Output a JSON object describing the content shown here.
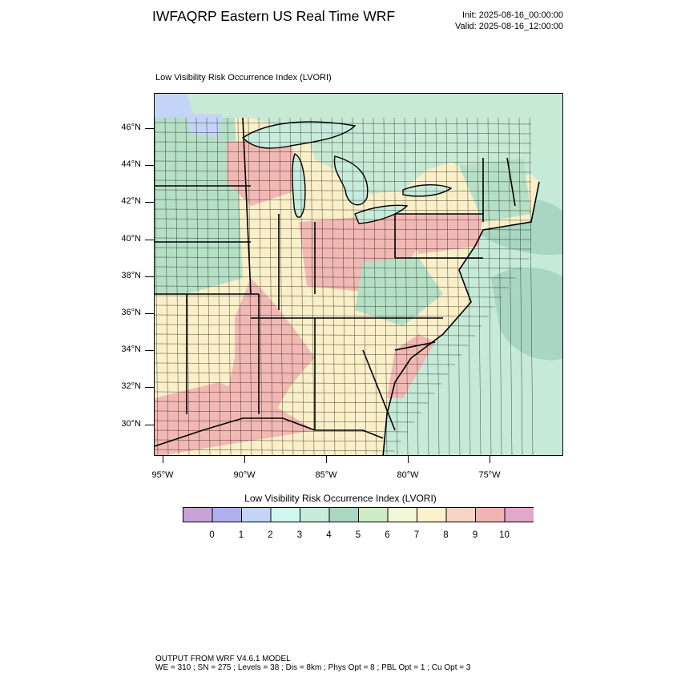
{
  "header": {
    "title": "IWFAQRP Eastern US Real Time WRF",
    "init": "Init: 2025-08-16_00:00:00",
    "valid": "Valid: 2025-08-16_12:00:00"
  },
  "field_title": "Low Visibility Risk Occurrence Index   (LVORI)",
  "latitude_labels": [
    "46°N",
    "44°N",
    "42°N",
    "40°N",
    "38°N",
    "36°N",
    "34°N",
    "32°N",
    "30°N"
  ],
  "longitude_labels": [
    "95°W",
    "90°W",
    "85°W",
    "80°W",
    "75°W"
  ],
  "colorbar": {
    "title": "Low Visibility Risk Occurrence Index  (LVORI)",
    "labels": [
      "0",
      "1",
      "2",
      "3",
      "4",
      "5",
      "6",
      "7",
      "8",
      "9",
      "10"
    ],
    "colors": [
      "#c8a2d8",
      "#b0b0ee",
      "#c4d4f6",
      "#d0f8f0",
      "#c8ecdc",
      "#a8d8c0",
      "#d0ecc4",
      "#f0f8d8",
      "#fdf0cc",
      "#f8d4c4",
      "#f0b4b4",
      "#e0a8cc"
    ]
  },
  "map_colors": {
    "ocean": "#c6ead8",
    "ocean_dark": "#a8d6c2",
    "lake": "#c8ecdc",
    "canada": "#c8ead4",
    "high_risk": "#f2b9b4",
    "mid_risk": "#f9efc8",
    "low_risk": "#b6e0c6",
    "very_low": "#c4d4f6"
  },
  "footer": {
    "line1": "OUTPUT FROM WRF V4.6.1 MODEL",
    "line2": "WE = 310 ; SN = 275 ; Levels = 38 ; Dis = 8km ; Phys Opt = 8 ; PBL Opt = 1 ; Cu Opt = 3"
  }
}
